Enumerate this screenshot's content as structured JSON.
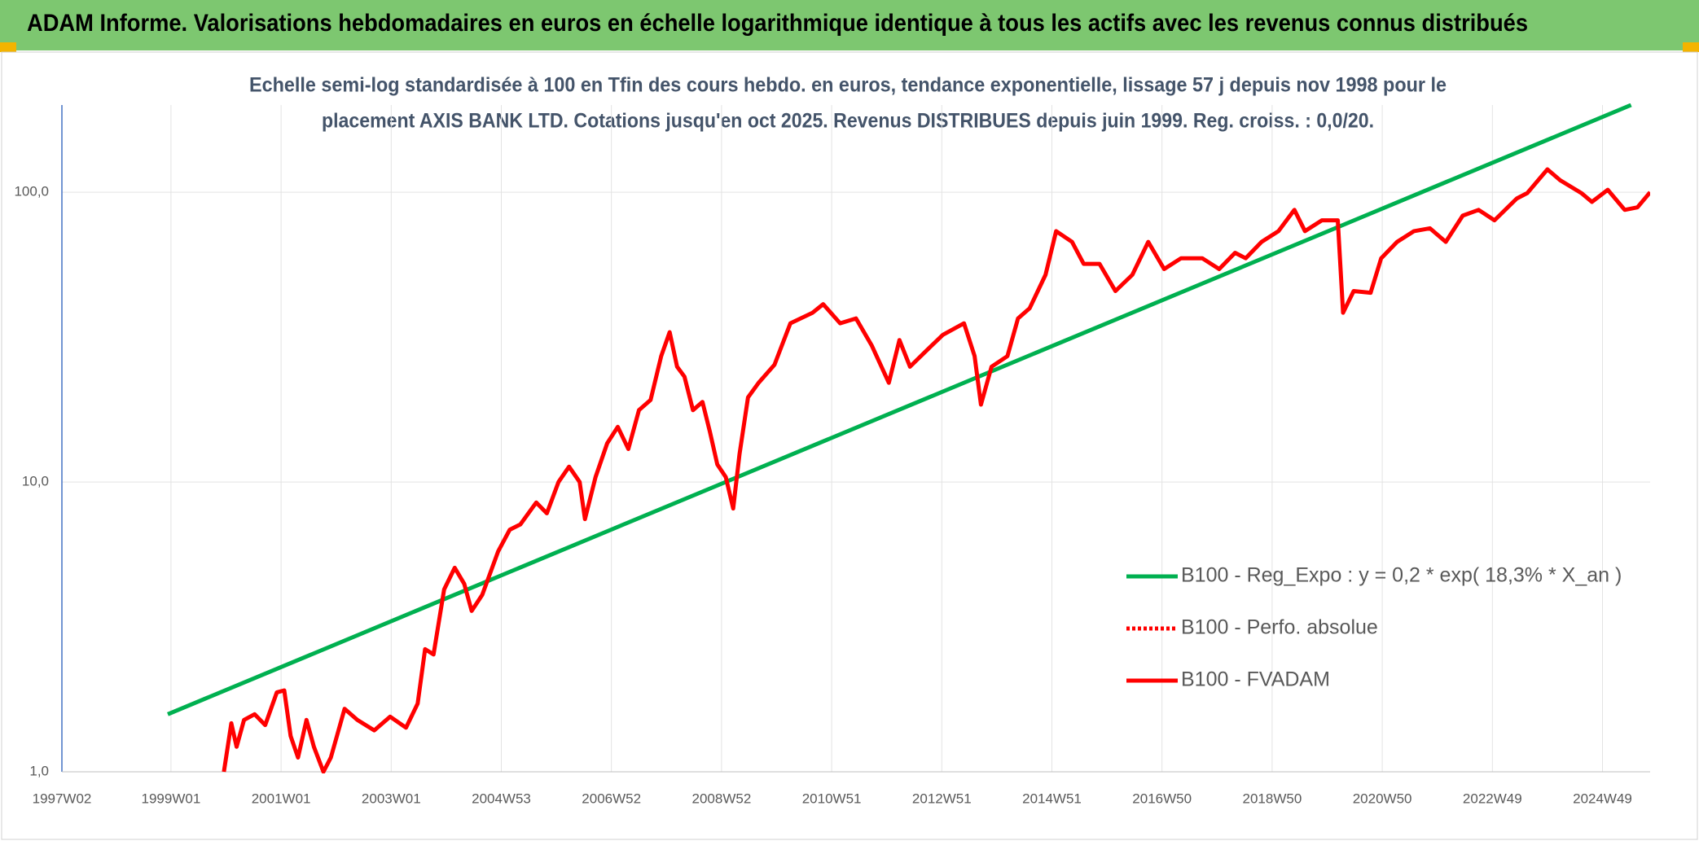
{
  "chart_data": {
    "type": "line",
    "title": "ADAM Informe. Valorisations hebdomadaires en euros en échelle logarithmique identique à tous les actifs avec les revenus connus distribués",
    "subtitle": [
      "Echelle semi-log standardisée à 100 en Tfin des cours hebdo. en euros, tendance exponentielle, lissage 57 j depuis nov 1998 pour le",
      "placement AXIS BANK LTD. Cotations jusqu'en oct 2025. Revenus DISTRIBUES depuis juin 1999. Reg. croiss. : 0,0/20."
    ],
    "log_scale": true,
    "grid": true,
    "legend": "lower right",
    "xlim": [
      0,
      1500
    ],
    "xticks": [
      {
        "value": 0,
        "label": "1997W02"
      },
      {
        "value": 103,
        "label": "1999W01"
      },
      {
        "value": 207,
        "label": "2001W01"
      },
      {
        "value": 311,
        "label": "2003W01"
      },
      {
        "value": 415,
        "label": "2004W53"
      },
      {
        "value": 519,
        "label": "2006W52"
      },
      {
        "value": 623,
        "label": "2008W52"
      },
      {
        "value": 727,
        "label": "2010W51"
      },
      {
        "value": 831,
        "label": "2012W51"
      },
      {
        "value": 935,
        "label": "2014W51"
      },
      {
        "value": 1039,
        "label": "2016W50"
      },
      {
        "value": 1143,
        "label": "2018W50"
      },
      {
        "value": 1247,
        "label": "2020W50"
      },
      {
        "value": 1351,
        "label": "2022W49"
      },
      {
        "value": 1455,
        "label": "2024W49"
      }
    ],
    "ylim": [
      1,
      200
    ],
    "yticks": [
      {
        "value": 1,
        "label": "1,0"
      },
      {
        "value": 10,
        "label": "10,0"
      },
      {
        "value": 100,
        "label": "100,0"
      }
    ],
    "series": [
      {
        "name": "B100 - Reg_Expo : y = 0,2 * exp( 18,3% *  X_an )",
        "color": "#00b050",
        "x": [
          100,
          1482
        ],
        "values": [
          1.58,
          200
        ]
      },
      {
        "name": "B100 - Perfo. absolue",
        "color": "#ff0000",
        "dash": true,
        "x": [],
        "values": []
      },
      {
        "name": "B100 - FVADAM",
        "color": "#ff0000",
        "x": [
          153,
          160,
          165,
          172,
          182,
          192,
          203,
          210,
          216,
          223,
          231,
          238,
          247,
          254,
          267,
          279,
          295,
          310,
          325,
          336,
          343,
          351,
          361,
          371,
          380,
          387,
          397,
          412,
          423,
          433,
          448,
          458,
          469,
          479,
          489,
          494,
          504,
          515,
          525,
          535,
          545,
          556,
          566,
          574,
          581,
          588,
          596,
          605,
          612,
          619,
          627,
          634,
          640,
          648,
          658,
          673,
          688,
          709,
          719,
          735,
          750,
          765,
          781,
          791,
          801,
          816,
          832,
          852,
          862,
          868,
          878,
          893,
          903,
          914,
          929,
          939,
          954,
          965,
          980,
          995,
          1011,
          1026,
          1041,
          1057,
          1077,
          1093,
          1108,
          1118,
          1133,
          1149,
          1164,
          1174,
          1190,
          1205,
          1210,
          1220,
          1236,
          1246,
          1261,
          1277,
          1292,
          1307,
          1323,
          1338,
          1353,
          1374,
          1384,
          1403,
          1415,
          1435,
          1445,
          1460,
          1476,
          1488,
          1500
        ],
        "values": [
          1.0,
          1.47,
          1.22,
          1.51,
          1.58,
          1.45,
          1.88,
          1.91,
          1.33,
          1.12,
          1.51,
          1.22,
          1.0,
          1.12,
          1.65,
          1.51,
          1.39,
          1.55,
          1.42,
          1.72,
          2.65,
          2.54,
          4.26,
          5.06,
          4.45,
          3.59,
          4.08,
          5.76,
          6.85,
          7.14,
          8.5,
          7.8,
          10.0,
          11.3,
          10.0,
          7.45,
          10.4,
          13.6,
          15.5,
          13.0,
          17.7,
          19.2,
          27.2,
          32.9,
          25.0,
          23.1,
          17.7,
          18.9,
          14.9,
          11.5,
          10.4,
          8.1,
          12.5,
          19.6,
          22.0,
          25.4,
          35.3,
          38.4,
          41.1,
          35.3,
          36.7,
          29.5,
          22.0,
          30.9,
          25.0,
          28.3,
          32.2,
          35.3,
          27.2,
          18.5,
          25.0,
          27.2,
          36.7,
          39.8,
          51.9,
          73.4,
          67.4,
          56.6,
          56.6,
          45.6,
          51.9,
          67.4,
          54.3,
          59.2,
          59.2,
          54.3,
          61.8,
          59.2,
          67.4,
          73.4,
          86.9,
          73.4,
          80.0,
          80.0,
          38.4,
          45.6,
          45.0,
          59.2,
          67.4,
          73.4,
          75.1,
          67.4,
          83.0,
          86.9,
          80.0,
          95.1,
          99.4,
          120,
          110,
          99.4,
          92.6,
          102,
          86.9,
          88.7,
          100
        ]
      }
    ]
  }
}
